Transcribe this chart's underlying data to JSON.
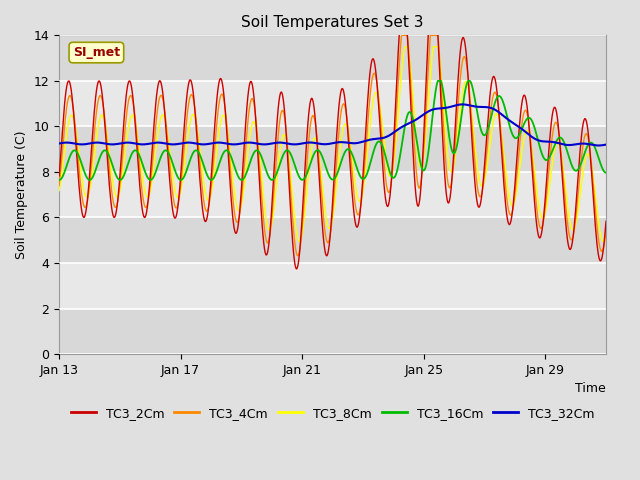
{
  "title": "Soil Temperatures Set 3",
  "xlabel": "Time",
  "ylabel": "Soil Temperature (C)",
  "ylim": [
    0,
    14
  ],
  "yticks": [
    0,
    2,
    4,
    6,
    8,
    10,
    12,
    14
  ],
  "annotation_text": "SI_met",
  "bg_color": "#e0e0e0",
  "plot_bg_color": "#e8e8e8",
  "grid_color": "white",
  "series_colors": {
    "TC3_2Cm": "#cc0000",
    "TC3_4Cm": "#ff8800",
    "TC3_8Cm": "#ffff00",
    "TC3_16Cm": "#00bb00",
    "TC3_32Cm": "#0000cc"
  },
  "xticks_labels": [
    "Jan 13",
    "Jan 17",
    "Jan 21",
    "Jan 25",
    "Jan 29"
  ],
  "xticks_pos": [
    0,
    4,
    8,
    12,
    16
  ],
  "legend_colors": [
    "#cc0000",
    "#ff8800",
    "#ffff00",
    "#00bb00",
    "#0000cc"
  ],
  "legend_labels": [
    "TC3_2Cm",
    "TC3_4Cm",
    "TC3_8Cm",
    "TC3_16Cm",
    "TC3_32Cm"
  ]
}
